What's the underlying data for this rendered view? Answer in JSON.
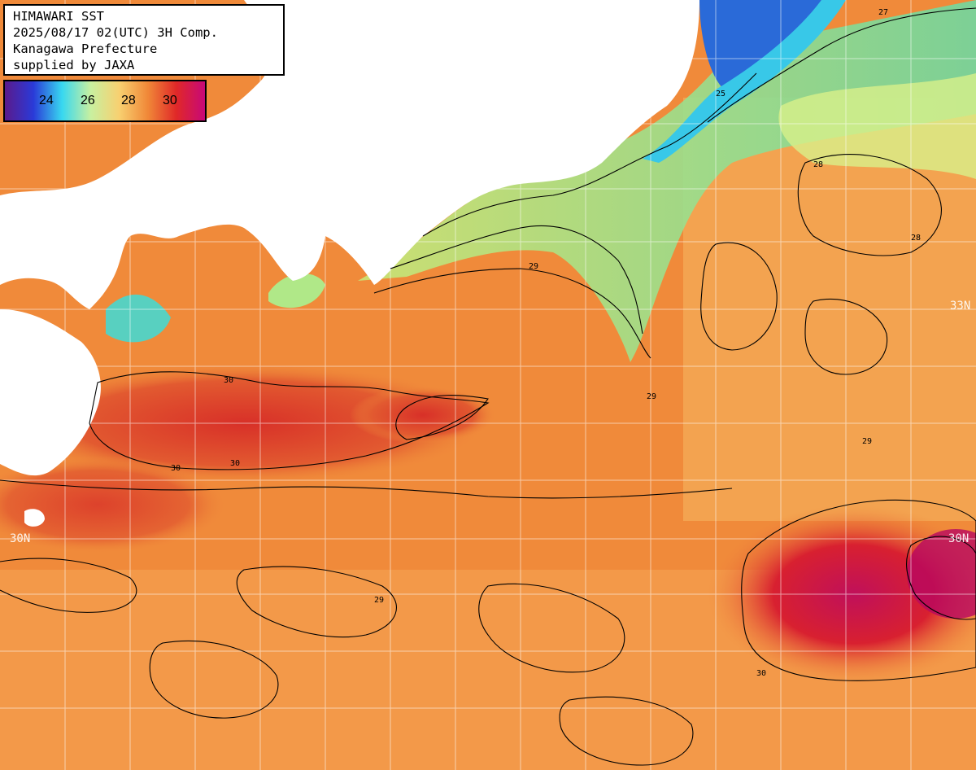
{
  "header": {
    "line1": "HIMAWARI SST",
    "line2": "2025/08/17 02(UTC) 3H Comp.",
    "line3": "Kanagawa Prefecture",
    "line4": "supplied by JAXA"
  },
  "legend": {
    "ticks": [
      "24",
      "26",
      "28",
      "30"
    ],
    "colors": [
      "#5a1a8c",
      "#2a3ad8",
      "#38d8f0",
      "#c8f0a0",
      "#f8d070",
      "#f08838",
      "#e02828",
      "#c80878"
    ]
  },
  "lat_labels": {
    "lat_33_right": "33N",
    "lat_30_left": "30N",
    "lat_30_right": "30N"
  },
  "contour_labels": [
    "25",
    "27",
    "28",
    "28",
    "29",
    "29",
    "30",
    "30",
    "30",
    "30",
    "29",
    "29"
  ],
  "colors": {
    "land": "#ffffff",
    "ocean_base": "#f08a3a",
    "warm_core": "#d82828",
    "hot_core": "#c81060",
    "cool_coast": "#a8e070",
    "cold_coast": "#2868d8",
    "grid": "#ffffff",
    "contour": "#000000"
  }
}
